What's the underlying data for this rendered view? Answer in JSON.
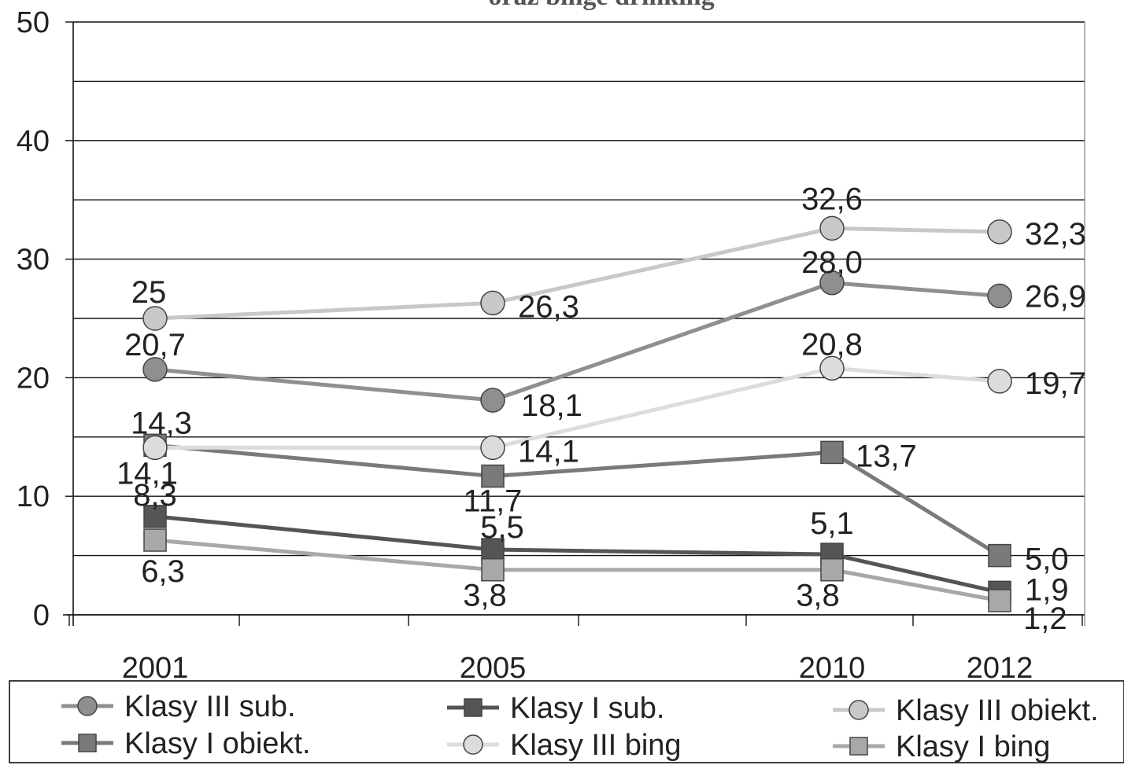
{
  "chart_data": {
    "type": "line",
    "title": "oraz binge drinking",
    "categories": [
      "2001",
      "2005",
      "2010",
      "2012"
    ],
    "ylim": [
      0,
      50
    ],
    "yticks": [
      0,
      10,
      20,
      30,
      40,
      50
    ],
    "grid": true,
    "legend_position": "bottom",
    "series": [
      {
        "name": "Klasy III sub.",
        "values": [
          20.7,
          18.1,
          28.0,
          26.9
        ],
        "labels": [
          "20,7",
          "18,1",
          "28,0",
          "26,9"
        ],
        "marker": "circle",
        "color": "#8f8f8f"
      },
      {
        "name": "Klasy I sub.",
        "values": [
          8.3,
          5.5,
          5.1,
          1.9
        ],
        "labels": [
          "8,3",
          "5,5",
          "5,1",
          "1,9"
        ],
        "marker": "square",
        "color": "#555555"
      },
      {
        "name": "Klasy III obiekt.",
        "values": [
          25,
          26.3,
          32.6,
          32.3
        ],
        "labels": [
          "25",
          "26,3",
          "32,6",
          "32,3"
        ],
        "marker": "circle",
        "color": "#c8c8c8"
      },
      {
        "name": "Klasy I obiekt.",
        "values": [
          14.3,
          11.7,
          13.7,
          5.0
        ],
        "labels": [
          "14,3",
          "11,7",
          "13,7",
          "5,0"
        ],
        "marker": "square",
        "color": "#7a7a7a"
      },
      {
        "name": "Klasy III bing",
        "values": [
          14.1,
          14.1,
          20.8,
          19.7
        ],
        "labels": [
          "14,1",
          "14,1",
          "20,8",
          "19,7"
        ],
        "marker": "circle",
        "color": "#dcdcdc"
      },
      {
        "name": "Klasy I bing",
        "values": [
          6.3,
          3.8,
          3.8,
          1.2
        ],
        "labels": [
          "6,3",
          "3,8",
          "3,8",
          "1,2"
        ],
        "marker": "square",
        "color": "#a8a8a8"
      }
    ]
  }
}
